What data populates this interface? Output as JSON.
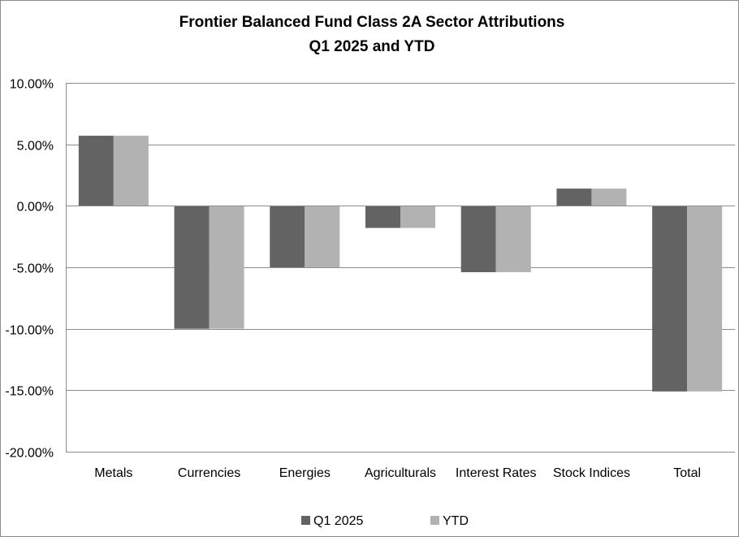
{
  "chart_data": {
    "type": "bar",
    "title": [
      "Frontier Balanced Fund Class 2A Sector Attributions",
      "Q1 2025 and YTD"
    ],
    "categories": [
      "Metals",
      "Currencies",
      "Energies",
      "Agriculturals",
      "Interest Rates",
      "Stock Indices",
      "Total"
    ],
    "series": [
      {
        "name": "Q1 2025",
        "color": "#636363",
        "values": [
          5.7,
          -10.0,
          -5.0,
          -1.8,
          -5.4,
          1.4,
          -15.1
        ]
      },
      {
        "name": "YTD",
        "color": "#b2b2b2",
        "values": [
          5.7,
          -10.0,
          -5.0,
          -1.8,
          -5.4,
          1.4,
          -15.1
        ]
      }
    ],
    "ylim": [
      -20,
      10
    ],
    "yticks": [
      10,
      5,
      0,
      -5,
      -10,
      -15,
      -20
    ],
    "ytick_labels": [
      "10.00%",
      "5.00%",
      "0.00%",
      "-5.00%",
      "-10.00%",
      "-15.00%",
      "-20.00%"
    ],
    "grid": true,
    "legend_position": "bottom"
  }
}
